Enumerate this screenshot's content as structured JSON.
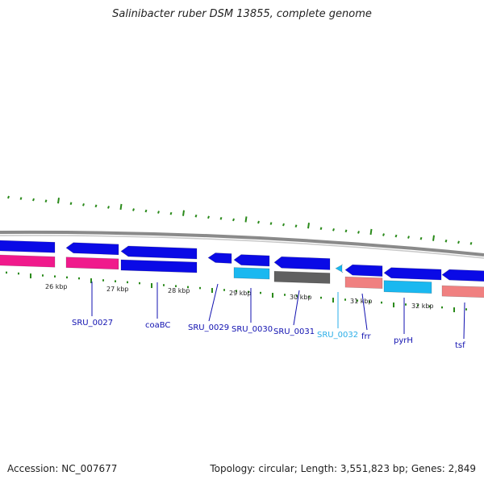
{
  "title": "Salinibacter ruber DSM 13855, complete genome",
  "footer": {
    "accession": "Accession: NC_007677",
    "summary": "Topology: circular; Length: 3,551,823 bp; Genes: 2,849"
  },
  "colors": {
    "backbone": "#8a8a8a",
    "tick": "#2a8a1a",
    "gene_blue": "#0a0ae6",
    "rrna_pink": "#f01a8c",
    "cds_cyan": "#1ab8f0",
    "cds_gray": "#606060",
    "cds_salmon": "#f08080",
    "label_blue": "#1010b0",
    "label_cyan": "#2aaee8"
  },
  "scale_labels": [
    "26 kbp",
    "27 kbp",
    "28 kbp",
    "29 kbp",
    "30 kbp",
    "31 kbp",
    "32 kbp"
  ],
  "gene_labels": [
    {
      "name": "SRU_0027",
      "color": "#1010b0"
    },
    {
      "name": "coaBC",
      "color": "#1010b0"
    },
    {
      "name": "SRU_0029",
      "color": "#1010b0"
    },
    {
      "name": "SRU_0030",
      "color": "#1010b0"
    },
    {
      "name": "SRU_0031",
      "color": "#1010b0"
    },
    {
      "name": "SRU_0032",
      "color": "#2aaee8"
    },
    {
      "name": "frr",
      "color": "#1010b0"
    },
    {
      "name": "pyrH",
      "color": "#1010b0"
    },
    {
      "name": "tsf",
      "color": "#1010b0"
    }
  ]
}
